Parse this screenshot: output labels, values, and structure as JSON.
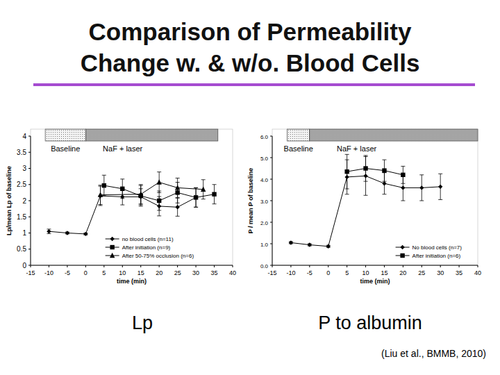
{
  "title": [
    "Comparison of Permeability",
    "Change w. & w/o. Blood Cells"
  ],
  "captions": [
    "Lp",
    "P to albumin"
  ],
  "citation": "(Liu et al., BMMB, 2010)",
  "chart_data": [
    {
      "type": "line",
      "x_label": "time (min)",
      "y_label": "Lp/mean Lp of baseline",
      "xlim": [
        -15,
        40
      ],
      "xticks": [
        -15,
        -10,
        -5,
        0,
        5,
        10,
        15,
        20,
        25,
        30,
        35,
        40
      ],
      "ylim": [
        0,
        4
      ],
      "yticks": [
        0,
        0.5,
        1,
        1.5,
        2,
        2.5,
        3,
        3.5,
        4
      ],
      "grid": false,
      "legend": "bottom",
      "phases": [
        {
          "label": "Baseline",
          "start": -11,
          "end": 0
        },
        {
          "label": "NaF + laser",
          "start": 0,
          "end": 36
        }
      ],
      "series": [
        {
          "name": "no blood cells (n=11)",
          "color": "#000000",
          "marker": "diamond",
          "line_style": "solid",
          "x": [
            -10,
            -5,
            0,
            4,
            10,
            15,
            20,
            25,
            30
          ],
          "values": [
            1.05,
            1.0,
            0.97,
            2.15,
            2.12,
            2.12,
            1.83,
            1.8,
            2.1
          ],
          "errors": [
            0.07,
            0.03,
            0.03,
            0.3,
            0.25,
            0.25,
            0.3,
            0.28,
            0.3
          ]
        },
        {
          "name": "After initiation (n=9)",
          "color": "#000000",
          "marker": "square",
          "line_style": "solid",
          "x": [
            5,
            10,
            15,
            20,
            25,
            30,
            35
          ],
          "values": [
            2.47,
            2.37,
            2.15,
            2.0,
            2.25,
            2.1,
            2.2
          ],
          "errors": [
            0.32,
            0.3,
            0.32,
            0.3,
            0.32,
            0.3,
            0.3
          ]
        },
        {
          "name": "After 50-75% occlusion (n=6)",
          "color": "#000000",
          "marker": "triangle",
          "line_style": "solid",
          "x": [
            4,
            15,
            20,
            25,
            32
          ],
          "values": [
            2.18,
            2.2,
            2.57,
            2.4,
            2.35
          ],
          "errors": [
            0.3,
            0.3,
            0.32,
            0.3,
            0.3
          ]
        }
      ]
    },
    {
      "type": "line",
      "x_label": "time (min)",
      "y_label": "P / mean P of baseline",
      "xlim": [
        -15,
        40
      ],
      "xticks": [
        -15,
        -10,
        -5,
        0,
        5,
        10,
        15,
        20,
        25,
        30,
        35,
        40
      ],
      "ylim": [
        0,
        6
      ],
      "yticks": [
        {
          "value": 0,
          "label": "0.0"
        },
        {
          "value": 1,
          "label": "1.0"
        },
        {
          "value": 2,
          "label": "2.0"
        },
        {
          "value": 3,
          "label": "3.0"
        },
        {
          "value": 4,
          "label": "4.0"
        },
        {
          "value": 5,
          "label": "5.0"
        },
        {
          "value": 6,
          "label": "6.0"
        }
      ],
      "grid": false,
      "legend": "bottom",
      "phases": [
        {
          "label": "Baseline",
          "start": -11,
          "end": -5
        },
        {
          "label": "NaF + laser",
          "start": -5,
          "end": 40
        }
      ],
      "series": [
        {
          "name": "No blood cells (n=7)",
          "color": "#000000",
          "marker": "diamond",
          "line_style": "solid",
          "x": [
            -10,
            -5,
            0,
            5,
            10,
            15,
            20,
            25,
            30
          ],
          "values": [
            1.05,
            0.95,
            0.88,
            4.1,
            4.15,
            3.8,
            3.6,
            3.6,
            3.65
          ],
          "errors": [
            0.05,
            0.05,
            0.05,
            0.8,
            0.9,
            0.5,
            0.6,
            0.6,
            0.6
          ]
        },
        {
          "name": "After initiation (n=6)",
          "color": "#000000",
          "marker": "square",
          "line_style": "solid",
          "x": [
            5,
            10,
            15,
            20
          ],
          "values": [
            4.35,
            4.5,
            4.4,
            4.2
          ],
          "errors": [
            0.8,
            0.6,
            0.5,
            0.4
          ]
        }
      ]
    }
  ]
}
